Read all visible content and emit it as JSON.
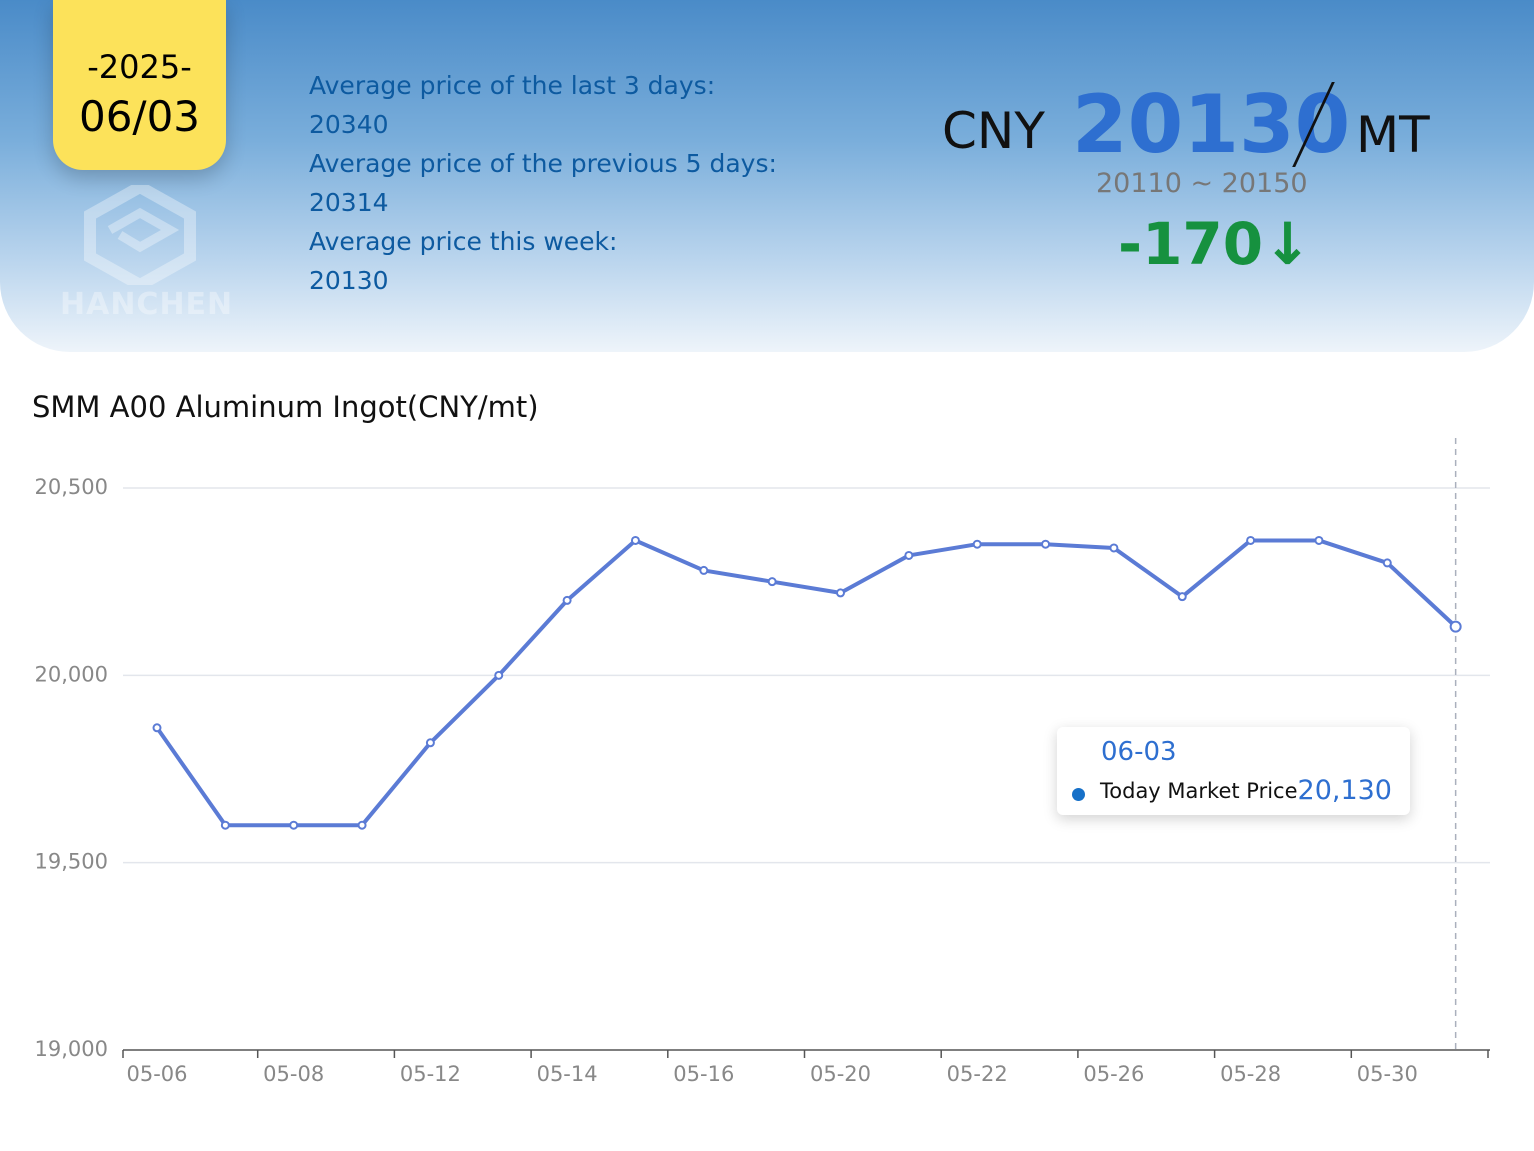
{
  "header": {
    "year": "-2025-",
    "date": "06/03",
    "logo_text": "HANCHEN",
    "stats": [
      {
        "label": "Average price of the last 3 days:",
        "value": "20340"
      },
      {
        "label": "Average price of the previous 5 days:",
        "value": "20314"
      },
      {
        "label": "Average price this week:",
        "value": "20130"
      }
    ],
    "currency": "CNY",
    "price": "20130",
    "unit": "MT",
    "range": "20110 ~ 20150",
    "change": "-170",
    "change_direction": "down",
    "colors": {
      "price": "#2e6fd0",
      "change": "#16913f",
      "date_box": "#fce25a"
    }
  },
  "chart_data": {
    "type": "line",
    "title": "SMM A00 Aluminum Ingot(CNY/mt)",
    "tick_labels": [
      "05-06",
      "05-08",
      "05-12",
      "05-14",
      "05-16",
      "05-20",
      "05-22",
      "05-26",
      "05-28",
      "05-30"
    ],
    "values": [
      19860,
      19600,
      19600,
      19600,
      19820,
      20000,
      20200,
      20360,
      20280,
      20250,
      20220,
      20320,
      20350,
      20350,
      20340,
      20210,
      20360,
      20360,
      20300,
      20130
    ],
    "yticks": [
      "19,000",
      "19,500",
      "20,000",
      "20,500"
    ],
    "ylim": [
      19000,
      20500
    ],
    "grid": true,
    "line_color": "#5b7bd5",
    "tooltip": {
      "date": "06-03",
      "series": "Today Market Price",
      "value": "20,130"
    }
  }
}
